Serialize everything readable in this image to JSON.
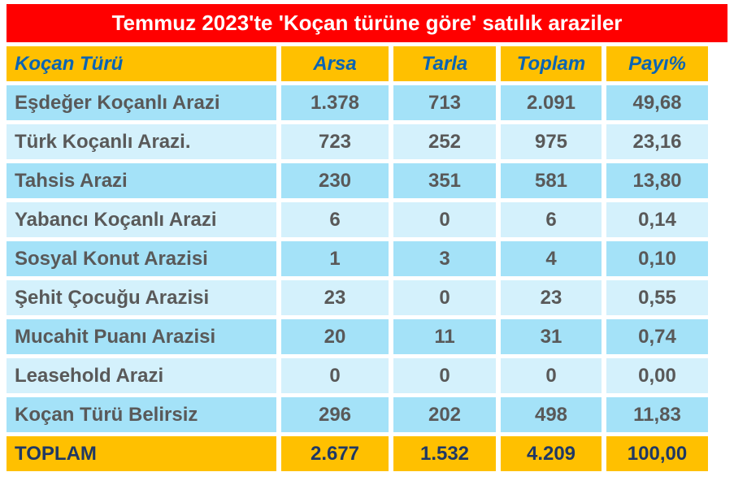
{
  "title": "Temmuz 2023'te 'Koçan türüne göre' satılık araziler",
  "table": {
    "header": [
      "Koçan Türü",
      "Arsa",
      "Tarla",
      "Toplam",
      "Payı%"
    ],
    "rows": [
      [
        "Eşdeğer Koçanlı Arazi",
        "1.378",
        "713",
        "2.091",
        "49,68"
      ],
      [
        "Türk Koçanlı Arazi.",
        "723",
        "252",
        "975",
        "23,16"
      ],
      [
        "Tahsis Arazi",
        "230",
        "351",
        "581",
        "13,80"
      ],
      [
        "Yabancı Koçanlı Arazi",
        "6",
        "0",
        "6",
        "0,14"
      ],
      [
        "Sosyal Konut Arazisi",
        "1",
        "3",
        "4",
        "0,10"
      ],
      [
        "Şehit Çocuğu Arazisi",
        "23",
        "0",
        "23",
        "0,55"
      ],
      [
        "Mucahit Puanı Arazisi",
        "20",
        "11",
        "31",
        "0,74"
      ],
      [
        "Leasehold Arazi",
        "0",
        "0",
        "0",
        "0,00"
      ],
      [
        "Koçan Türü Belirsiz",
        "296",
        "202",
        "498",
        "11,83"
      ]
    ],
    "total": [
      "TOPLAM",
      "2.677",
      "1.532",
      "4.209",
      "100,00"
    ]
  }
}
